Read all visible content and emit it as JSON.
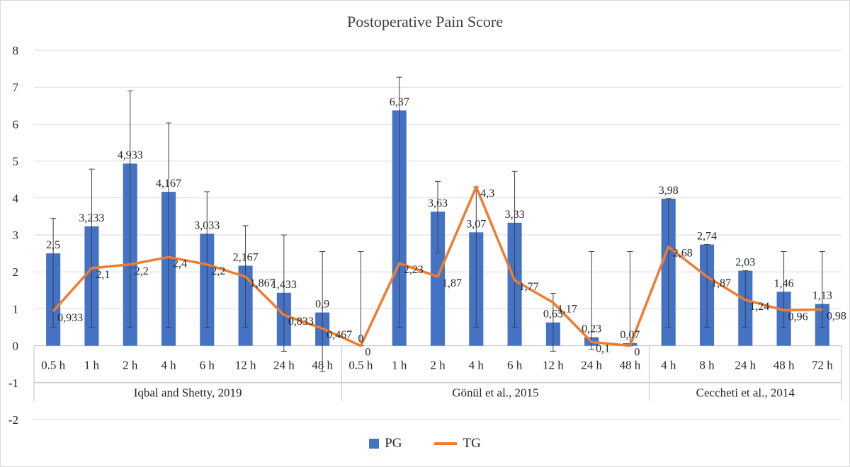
{
  "chart_data": {
    "type": "bar",
    "title": "Postoperative Pain Score",
    "ylim": [
      -2,
      8
    ],
    "yticks": [
      -2,
      -1,
      0,
      1,
      2,
      3,
      4,
      5,
      6,
      7,
      8
    ],
    "grid": true,
    "legend_position": "bottom",
    "groups": [
      {
        "label": "Iqbal and Shetty, 2019",
        "categories": [
          "0.5 h",
          "1 h",
          "2 h",
          "4 h",
          "6 h",
          "12 h",
          "24 h",
          "48 h"
        ]
      },
      {
        "label": "Gönül et al., 2015",
        "categories": [
          "0.5 h",
          "1 h",
          "2 h",
          "4 h",
          "6 h",
          "12 h",
          "24 h",
          "48 h"
        ]
      },
      {
        "label": "Ceccheti et al., 2014",
        "categories": [
          "4 h",
          "8 h",
          "24 h",
          "48 h",
          "72 h"
        ]
      }
    ],
    "series": [
      {
        "name": "PG",
        "type": "bar",
        "color": "#4472c4",
        "values": [
          2.5,
          3.233,
          4.933,
          4.167,
          3.033,
          2.167,
          1.433,
          0.9,
          0,
          6.37,
          3.63,
          3.07,
          3.33,
          0.63,
          0.23,
          0.07,
          3.98,
          2.74,
          2.03,
          1.46,
          1.13
        ],
        "labels": [
          "2,5",
          "3,233",
          "4,933",
          "4,167",
          "3,033",
          "2,167",
          "1,433",
          "0,9",
          "0",
          "6,37",
          "3,63",
          "3,07",
          "3,33",
          "0,63",
          "0,23",
          "0,07",
          "3,98",
          "2,74",
          "2,03",
          "1,46",
          "1,13"
        ],
        "error_bars": [
          {
            "low": 0.5,
            "high": 3.45
          },
          {
            "low": 0.5,
            "high": 4.78
          },
          {
            "low": 0.5,
            "high": 6.9
          },
          {
            "low": 0.5,
            "high": 6.03
          },
          {
            "low": 0.5,
            "high": 4.17
          },
          {
            "low": 0.5,
            "high": 3.25
          },
          {
            "low": -0.15,
            "high": 3.0
          },
          {
            "low": -0.7,
            "high": 2.55
          },
          {
            "low": 0,
            "high": 2.55
          },
          {
            "low": 0.5,
            "high": 7.27
          },
          {
            "low": 2.52,
            "high": 4.45
          },
          {
            "low": 0.5,
            "high": 4.3
          },
          {
            "low": 0.5,
            "high": 4.72
          },
          {
            "low": -0.15,
            "high": 1.42
          },
          {
            "low": -0.1,
            "high": 2.55
          },
          {
            "low": 0,
            "high": 2.55
          },
          {
            "low": 0.5,
            "high": 3.98
          },
          {
            "low": 0.5,
            "high": 2.74
          },
          {
            "low": 0.5,
            "high": 2.03
          },
          {
            "low": 0.5,
            "high": 2.55
          },
          {
            "low": 0.5,
            "high": 2.55
          }
        ]
      },
      {
        "name": "TG",
        "type": "line",
        "color": "#ed7d31",
        "values": [
          0.933,
          2.1,
          2.2,
          2.4,
          2.2,
          1.867,
          0.833,
          0.467,
          0,
          2.23,
          1.87,
          4.3,
          1.77,
          1.17,
          0.1,
          0,
          2.68,
          1.87,
          1.24,
          0.96,
          0.98
        ],
        "labels": [
          "0,933",
          "2,1",
          "2,2",
          "2,4",
          "2,2",
          "1,867",
          "0,833",
          "0,467",
          "0",
          "2,23",
          "1,87",
          "4,3",
          "1,77",
          "1,17",
          "0,1",
          "0",
          "2,68",
          "1,87",
          "1,24",
          "0,96",
          "0,98"
        ]
      }
    ]
  },
  "legend": {
    "bar_label": "PG",
    "line_label": "TG"
  },
  "colors": {
    "axis_text": "#262626",
    "grid": "#d9d9d9",
    "error_bar": "#404040"
  }
}
